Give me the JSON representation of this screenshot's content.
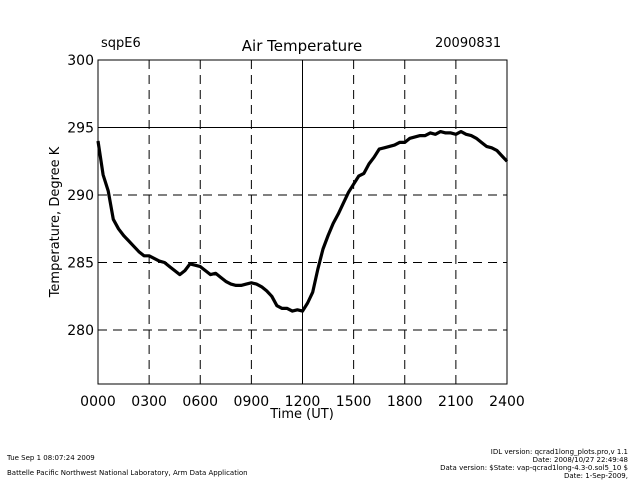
{
  "header": {
    "site": "sqpE6",
    "date": "20090831"
  },
  "footer": {
    "timestamp": "Tue Sep  1 08:07:24 2009",
    "organization": "Battelle Pacific Northwest National Laboratory, Arm Data Application",
    "idl_version": "IDL version: qcrad1long_plots.pro,v 1.1",
    "script_date": "Date: 2008/10/27 22:49:48",
    "data_version": "Data version: $State: vap-qcrad1long-4.3-0.sol5_10 $",
    "data_date": "Date: 1-Sep-2009,"
  },
  "chart_data": {
    "type": "line",
    "title": "Air Temperature",
    "xlabel": "Time (UT)",
    "ylabel": "Temperature, Degree K",
    "xlim": [
      0,
      2400
    ],
    "ylim": [
      276,
      300
    ],
    "x_ticks": [
      "0000",
      "0300",
      "0600",
      "0900",
      "1200",
      "1500",
      "1800",
      "2100",
      "2400"
    ],
    "y_ticks": [
      280,
      285,
      290,
      295,
      300
    ],
    "grid": "dashed at every major tick; solid lines at 1200 and 295",
    "series": [
      {
        "color": "#000000",
        "x": [
          0,
          30,
          60,
          90,
          120,
          150,
          180,
          210,
          240,
          270,
          300,
          330,
          360,
          390,
          420,
          450,
          480,
          510,
          540,
          570,
          600,
          630,
          660,
          690,
          720,
          750,
          780,
          810,
          840,
          870,
          900,
          930,
          960,
          990,
          1020,
          1050,
          1080,
          1110,
          1140,
          1170,
          1200,
          1230,
          1260,
          1290,
          1320,
          1350,
          1380,
          1410,
          1440,
          1470,
          1500,
          1530,
          1560,
          1590,
          1620,
          1650,
          1680,
          1710,
          1740,
          1770,
          1800,
          1830,
          1860,
          1890,
          1920,
          1950,
          1980,
          2010,
          2040,
          2070,
          2100,
          2130,
          2160,
          2190,
          2220,
          2250,
          2280,
          2310,
          2340,
          2370,
          2400
        ],
        "y": [
          294.0,
          291.5,
          290.3,
          288.2,
          287.5,
          287.0,
          286.6,
          286.2,
          285.8,
          285.5,
          285.5,
          285.3,
          285.1,
          285.0,
          284.7,
          284.4,
          284.1,
          284.4,
          284.9,
          284.8,
          284.7,
          284.4,
          284.1,
          284.2,
          283.9,
          283.6,
          283.4,
          283.3,
          283.3,
          283.4,
          283.5,
          283.4,
          283.2,
          282.9,
          282.5,
          281.8,
          281.6,
          281.6,
          281.4,
          281.5,
          281.4,
          282.0,
          282.8,
          284.5,
          286.0,
          287.0,
          287.9,
          288.6,
          289.4,
          290.2,
          290.8,
          291.4,
          291.6,
          292.3,
          292.8,
          293.4,
          293.5,
          293.6,
          293.7,
          293.9,
          293.9,
          294.2,
          294.3,
          294.4,
          294.4,
          294.6,
          294.5,
          294.7,
          294.6,
          294.6,
          294.5,
          294.7,
          294.5,
          294.4,
          294.2,
          293.9,
          293.6,
          293.5,
          293.3,
          292.9,
          292.5
        ]
      }
    ]
  }
}
